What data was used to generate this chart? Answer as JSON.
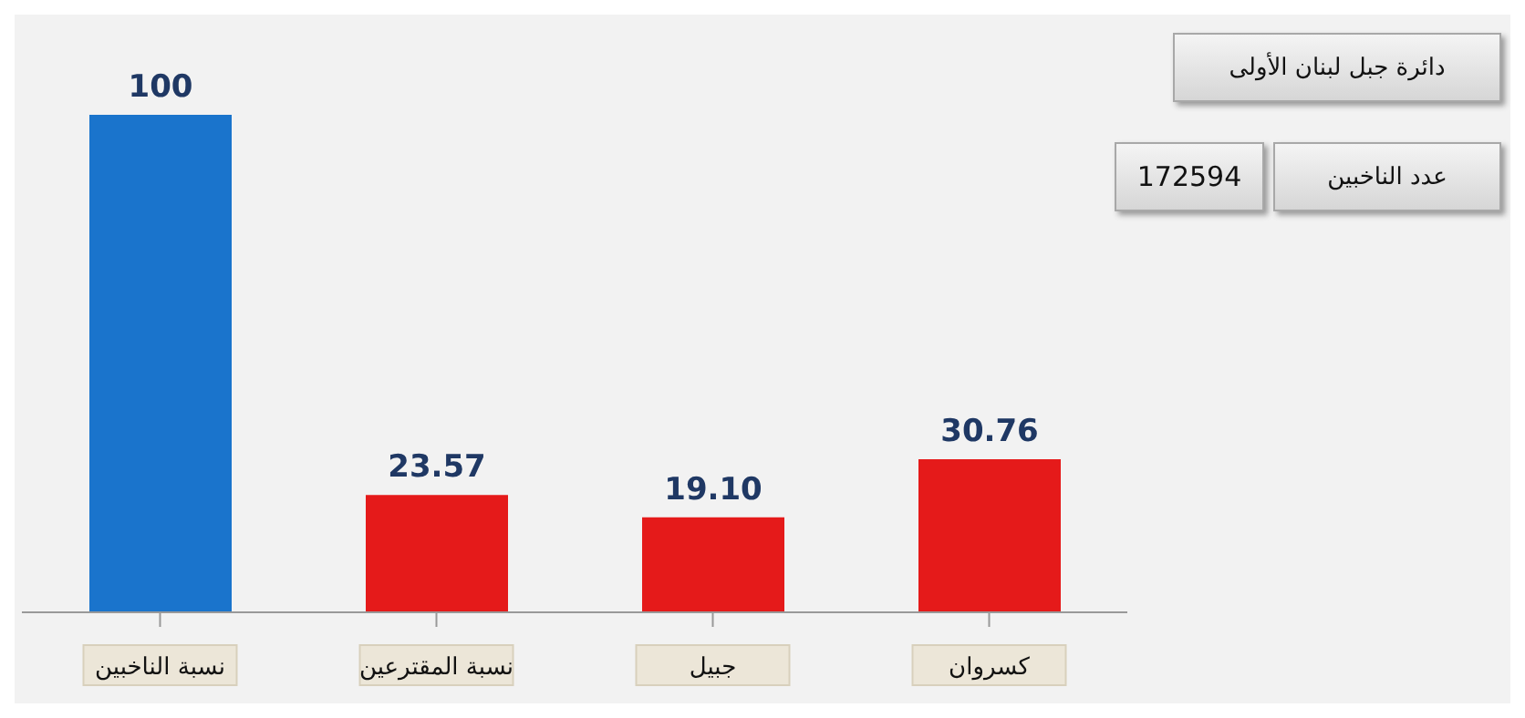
{
  "chart_data": {
    "type": "bar",
    "title": "دائرة جبل لبنان الأولى",
    "annotations": [
      "عدد الناخبين",
      "172594"
    ],
    "categories": [
      "نسبة الناخبين",
      "نسبة المقترعين",
      "جبيل",
      "كسروان"
    ],
    "values": [
      100,
      23.57,
      19.1,
      30.76
    ],
    "colors": [
      "#1a74cc",
      "#e51a1a",
      "#e51a1a",
      "#e51a1a"
    ],
    "value_labels": [
      "100",
      "23.57",
      "19.10",
      "30.76"
    ],
    "tick_labels": "x"
  }
}
